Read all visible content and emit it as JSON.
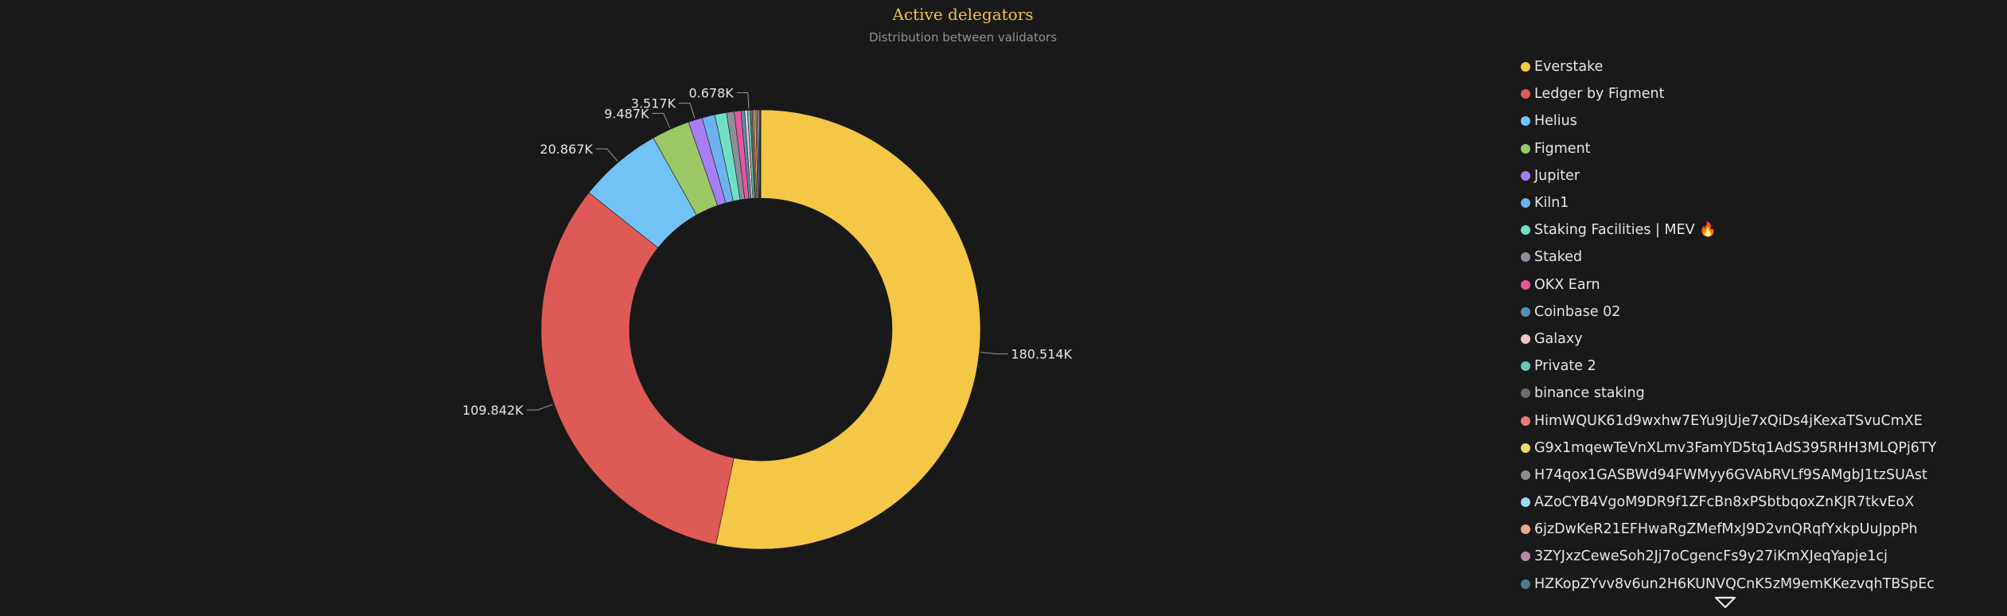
{
  "chart_data": {
    "type": "pie",
    "title": "Active delegators",
    "subtitle": "Distribution between validators",
    "donut": true,
    "legend_position": "right",
    "labels": [
      "Everstake",
      "Ledger by Figment",
      "Helius",
      "Figment",
      "Jupiter",
      "Kiln1",
      "Staking Facilities | MEV 🔥",
      "Staked",
      "OKX Earn",
      "Coinbase 02",
      "Galaxy",
      "Private 2",
      "binance staking",
      "HimWQUK61d9wxhw7EYu9jUje7xQiDs4jKexaTSvuCmXE",
      "G9x1mqewTeVnXLmv3FamYD5tq1AdS395RHH3MLQPj6TY",
      "H74qox1GASBWd94FWMyy6GVAbRVLf9SAMgbJ1tzSUAst",
      "AZoCYB4VgoM9DR9f1ZFcBn8xPSbtbqoxZnKJR7tkvEoX",
      "6jzDwKeR21EFHwaRgZMefMxJ9D2vnQRqfYxkpUuJppPh",
      "3ZYJxzCeweSoh2Jj7oCgencFs9y27iKmXJeqYapje1cj",
      "HZKopZYvv8v6un2H6KUNVQCnK5zM9emKKezvqhTBSpEc"
    ],
    "values": [
      180514,
      109842,
      20867,
      9487,
      3517,
      3200,
      2900,
      1900,
      1700,
      900,
      700,
      678,
      500,
      450,
      400,
      350,
      300,
      250,
      200,
      150
    ],
    "data_labels": [
      "180.514K",
      "109.842K",
      "20.867K",
      "9.487K",
      "3.517K",
      null,
      null,
      null,
      null,
      null,
      null,
      "0.678K",
      null,
      null,
      null,
      null,
      null,
      null,
      null,
      null
    ],
    "colors": [
      "#f5c746",
      "#dd5a56",
      "#72c2f6",
      "#99c864",
      "#a77ef3",
      "#6db1f1",
      "#6fe0c4",
      "#8b8f99",
      "#e4579d",
      "#5a8fb3",
      "#eec5c7",
      "#6cc4bc",
      "#6d6d6d",
      "#e77a7a",
      "#eadc6a",
      "#8e8e8e",
      "#9adcf0",
      "#f0a988",
      "#b68aa7",
      "#4e7b92"
    ]
  }
}
